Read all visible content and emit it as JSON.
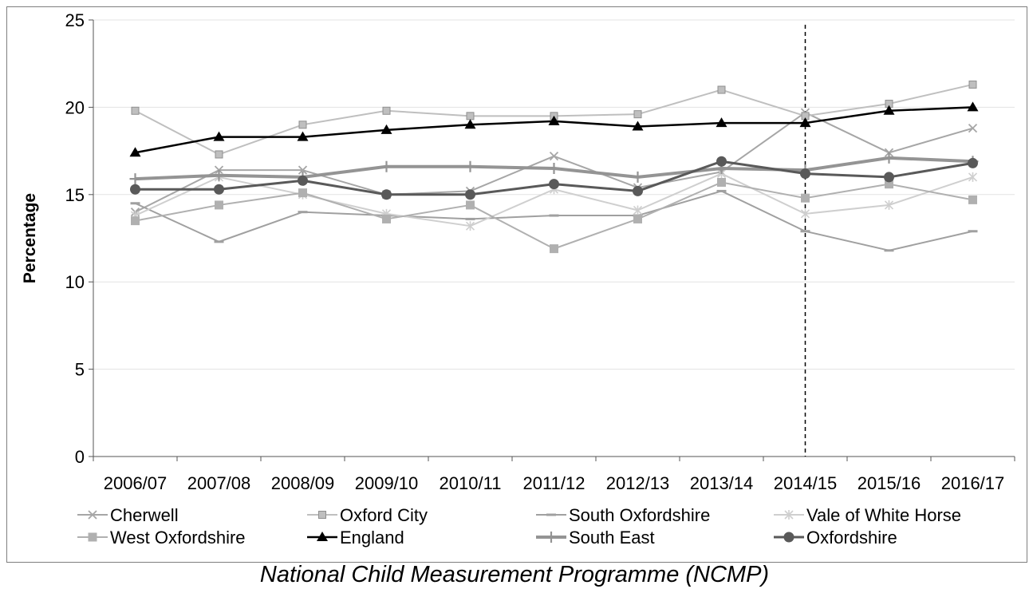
{
  "caption": "National Child Measurement Programme (NCMP)",
  "chart_data": {
    "type": "line",
    "ylabel": "Percentage",
    "xlabel": "",
    "ylim": [
      0,
      25
    ],
    "yticks": [
      0,
      5,
      10,
      15,
      20,
      25
    ],
    "grid": "horizontal",
    "legend_position": "bottom",
    "vertical_marker_category": "2014/15",
    "categories": [
      "2006/07",
      "2007/08",
      "2008/09",
      "2009/10",
      "2010/11",
      "2011/12",
      "2012/13",
      "2013/14",
      "2014/15",
      "2015/16",
      "2016/17"
    ],
    "series": [
      {
        "name": "Cherwell",
        "color": "#a6a6a6",
        "marker": "x",
        "width": 2,
        "values": [
          14.0,
          16.4,
          16.4,
          15.0,
          15.2,
          17.2,
          15.4,
          16.3,
          19.7,
          17.4,
          18.8
        ]
      },
      {
        "name": "Oxford City",
        "color": "#bfbfbf",
        "marker": "square-small",
        "width": 2,
        "values": [
          19.8,
          17.3,
          19.0,
          19.8,
          19.5,
          19.5,
          19.6,
          21.0,
          19.5,
          20.2,
          21.3
        ]
      },
      {
        "name": "South Oxfordshire",
        "color": "#a0a0a0",
        "marker": "dash",
        "width": 2,
        "values": [
          14.5,
          12.3,
          14.0,
          13.8,
          13.6,
          13.8,
          13.8,
          15.2,
          12.9,
          11.8,
          12.9
        ]
      },
      {
        "name": "Vale of White Horse",
        "color": "#cfcfcf",
        "marker": "star",
        "width": 2,
        "values": [
          13.8,
          16.0,
          15.0,
          13.9,
          13.2,
          15.3,
          14.1,
          16.2,
          13.9,
          14.4,
          16.0
        ]
      },
      {
        "name": "West Oxfordshire",
        "color": "#b0b0b0",
        "marker": "square",
        "width": 2,
        "values": [
          13.5,
          14.4,
          15.1,
          13.6,
          14.4,
          11.9,
          13.6,
          15.7,
          14.8,
          15.6,
          14.7
        ]
      },
      {
        "name": "England",
        "color": "#000000",
        "marker": "triangle",
        "width": 2.5,
        "values": [
          17.4,
          18.3,
          18.3,
          18.7,
          19.0,
          19.2,
          18.9,
          19.1,
          19.1,
          19.8,
          20.0
        ]
      },
      {
        "name": "South East",
        "color": "#949494",
        "marker": "plus",
        "width": 4,
        "values": [
          15.9,
          16.1,
          16.0,
          16.6,
          16.6,
          16.5,
          16.0,
          16.5,
          16.4,
          17.1,
          16.9
        ]
      },
      {
        "name": "Oxfordshire",
        "color": "#595959",
        "marker": "circle",
        "width": 3,
        "values": [
          15.3,
          15.3,
          15.8,
          15.0,
          15.0,
          15.6,
          15.2,
          16.9,
          16.2,
          16.0,
          16.8
        ]
      }
    ]
  }
}
